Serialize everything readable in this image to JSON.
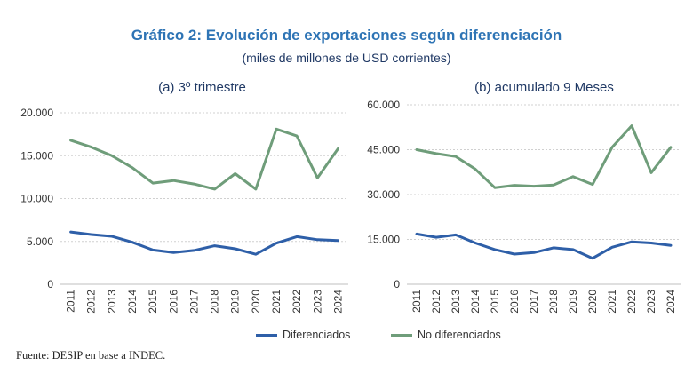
{
  "header": {
    "title": "Gráfico 2: Evolución de exportaciones según diferenciación",
    "subtitle": "(miles de millones de USD corrientes)"
  },
  "colors": {
    "diferenciados": "#2e5fa8",
    "no_diferenciados": "#6f9d7a",
    "grid": "#d0d0d0",
    "axis": "#bfbfbf"
  },
  "legend": {
    "diferenciados": "Diferenciados",
    "no_diferenciados": "No diferenciados"
  },
  "footer": {
    "source": "Fuente: DESIP en base a INDEC."
  },
  "chart_data": [
    {
      "type": "line",
      "title": "(a) 3º trimestre",
      "categories": [
        "2011",
        "2012",
        "2013",
        "2014",
        "2015",
        "2016",
        "2017",
        "2018",
        "2019",
        "2020",
        "2021",
        "2022",
        "2023",
        "2024"
      ],
      "ylim": [
        0,
        20000
      ],
      "yticks": [
        0,
        5000,
        10000,
        15000,
        20000
      ],
      "ytick_labels": [
        "0",
        "5.000",
        "10.000",
        "15.000",
        "20.000"
      ],
      "grid": true,
      "legend_position": "bottom",
      "series": [
        {
          "name": "Diferenciados",
          "values": [
            6100,
            5800,
            5600,
            4900,
            4000,
            3700,
            3950,
            4500,
            4150,
            3500,
            4800,
            5550,
            5200,
            5100
          ]
        },
        {
          "name": "No diferenciados",
          "values": [
            16800,
            16000,
            15000,
            13600,
            11800,
            12100,
            11700,
            11100,
            12900,
            11100,
            18100,
            17300,
            12400,
            15800
          ]
        }
      ]
    },
    {
      "type": "line",
      "title": "(b) acumulado 9 Meses",
      "categories": [
        "2011",
        "2012",
        "2013",
        "2014",
        "2015",
        "2016",
        "2017",
        "2018",
        "2019",
        "2020",
        "2021",
        "2022",
        "2023",
        "2024"
      ],
      "ylim": [
        0,
        60000
      ],
      "yticks": [
        0,
        15000,
        30000,
        45000,
        60000
      ],
      "ytick_labels": [
        "0",
        "15.000",
        "30.000",
        "45.000",
        "60.000"
      ],
      "grid": true,
      "legend_position": "bottom",
      "series": [
        {
          "name": "Diferenciados",
          "values": [
            16800,
            15700,
            16500,
            13800,
            11600,
            10100,
            10600,
            12200,
            11600,
            8700,
            12400,
            14200,
            13800,
            13000
          ]
        },
        {
          "name": "No diferenciados",
          "values": [
            45000,
            43700,
            42700,
            38500,
            32300,
            33100,
            32800,
            33200,
            36000,
            33400,
            45800,
            53000,
            37300,
            45800
          ]
        }
      ]
    }
  ]
}
